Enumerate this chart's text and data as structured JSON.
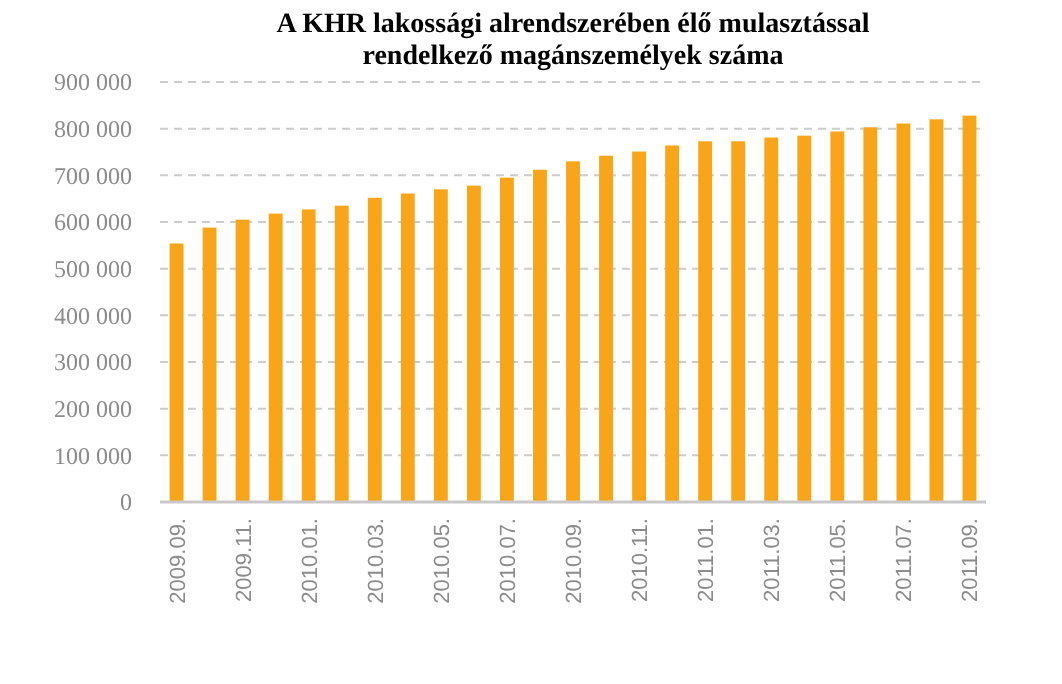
{
  "chart_data": {
    "type": "bar",
    "title": "A KHR lakossági alrendszerében élő mulasztással rendelkező magánszemélyek száma",
    "categories": [
      "2009.09.",
      null,
      "2009.11.",
      null,
      "2010.01.",
      null,
      "2010.03.",
      null,
      "2010.05.",
      null,
      "2010.07.",
      null,
      "2010.09.",
      null,
      "2010.11.",
      null,
      "2011.01.",
      null,
      "2011.03.",
      null,
      "2011.05.",
      null,
      "2011.07.",
      null,
      "2011.09."
    ],
    "values": [
      554000,
      588000,
      605000,
      618000,
      627000,
      635000,
      652000,
      661000,
      670000,
      678000,
      695000,
      712000,
      730000,
      742000,
      751000,
      764000,
      773000,
      773000,
      781000,
      785000,
      794000,
      803000,
      811000,
      820000,
      828000
    ],
    "color": "#f9a51a",
    "ylim": [
      0,
      900000
    ],
    "yticks": [
      {
        "value": 0,
        "label": "0"
      },
      {
        "value": 100000,
        "label": "100 000"
      },
      {
        "value": 200000,
        "label": "200 000"
      },
      {
        "value": 300000,
        "label": "300 000"
      },
      {
        "value": 400000,
        "label": "400 000"
      },
      {
        "value": 500000,
        "label": "500 000"
      },
      {
        "value": 600000,
        "label": "600 000"
      },
      {
        "value": 700000,
        "label": "700 000"
      },
      {
        "value": 800000,
        "label": "800 000"
      },
      {
        "value": 900000,
        "label": "900 000"
      }
    ],
    "grid": "y"
  }
}
